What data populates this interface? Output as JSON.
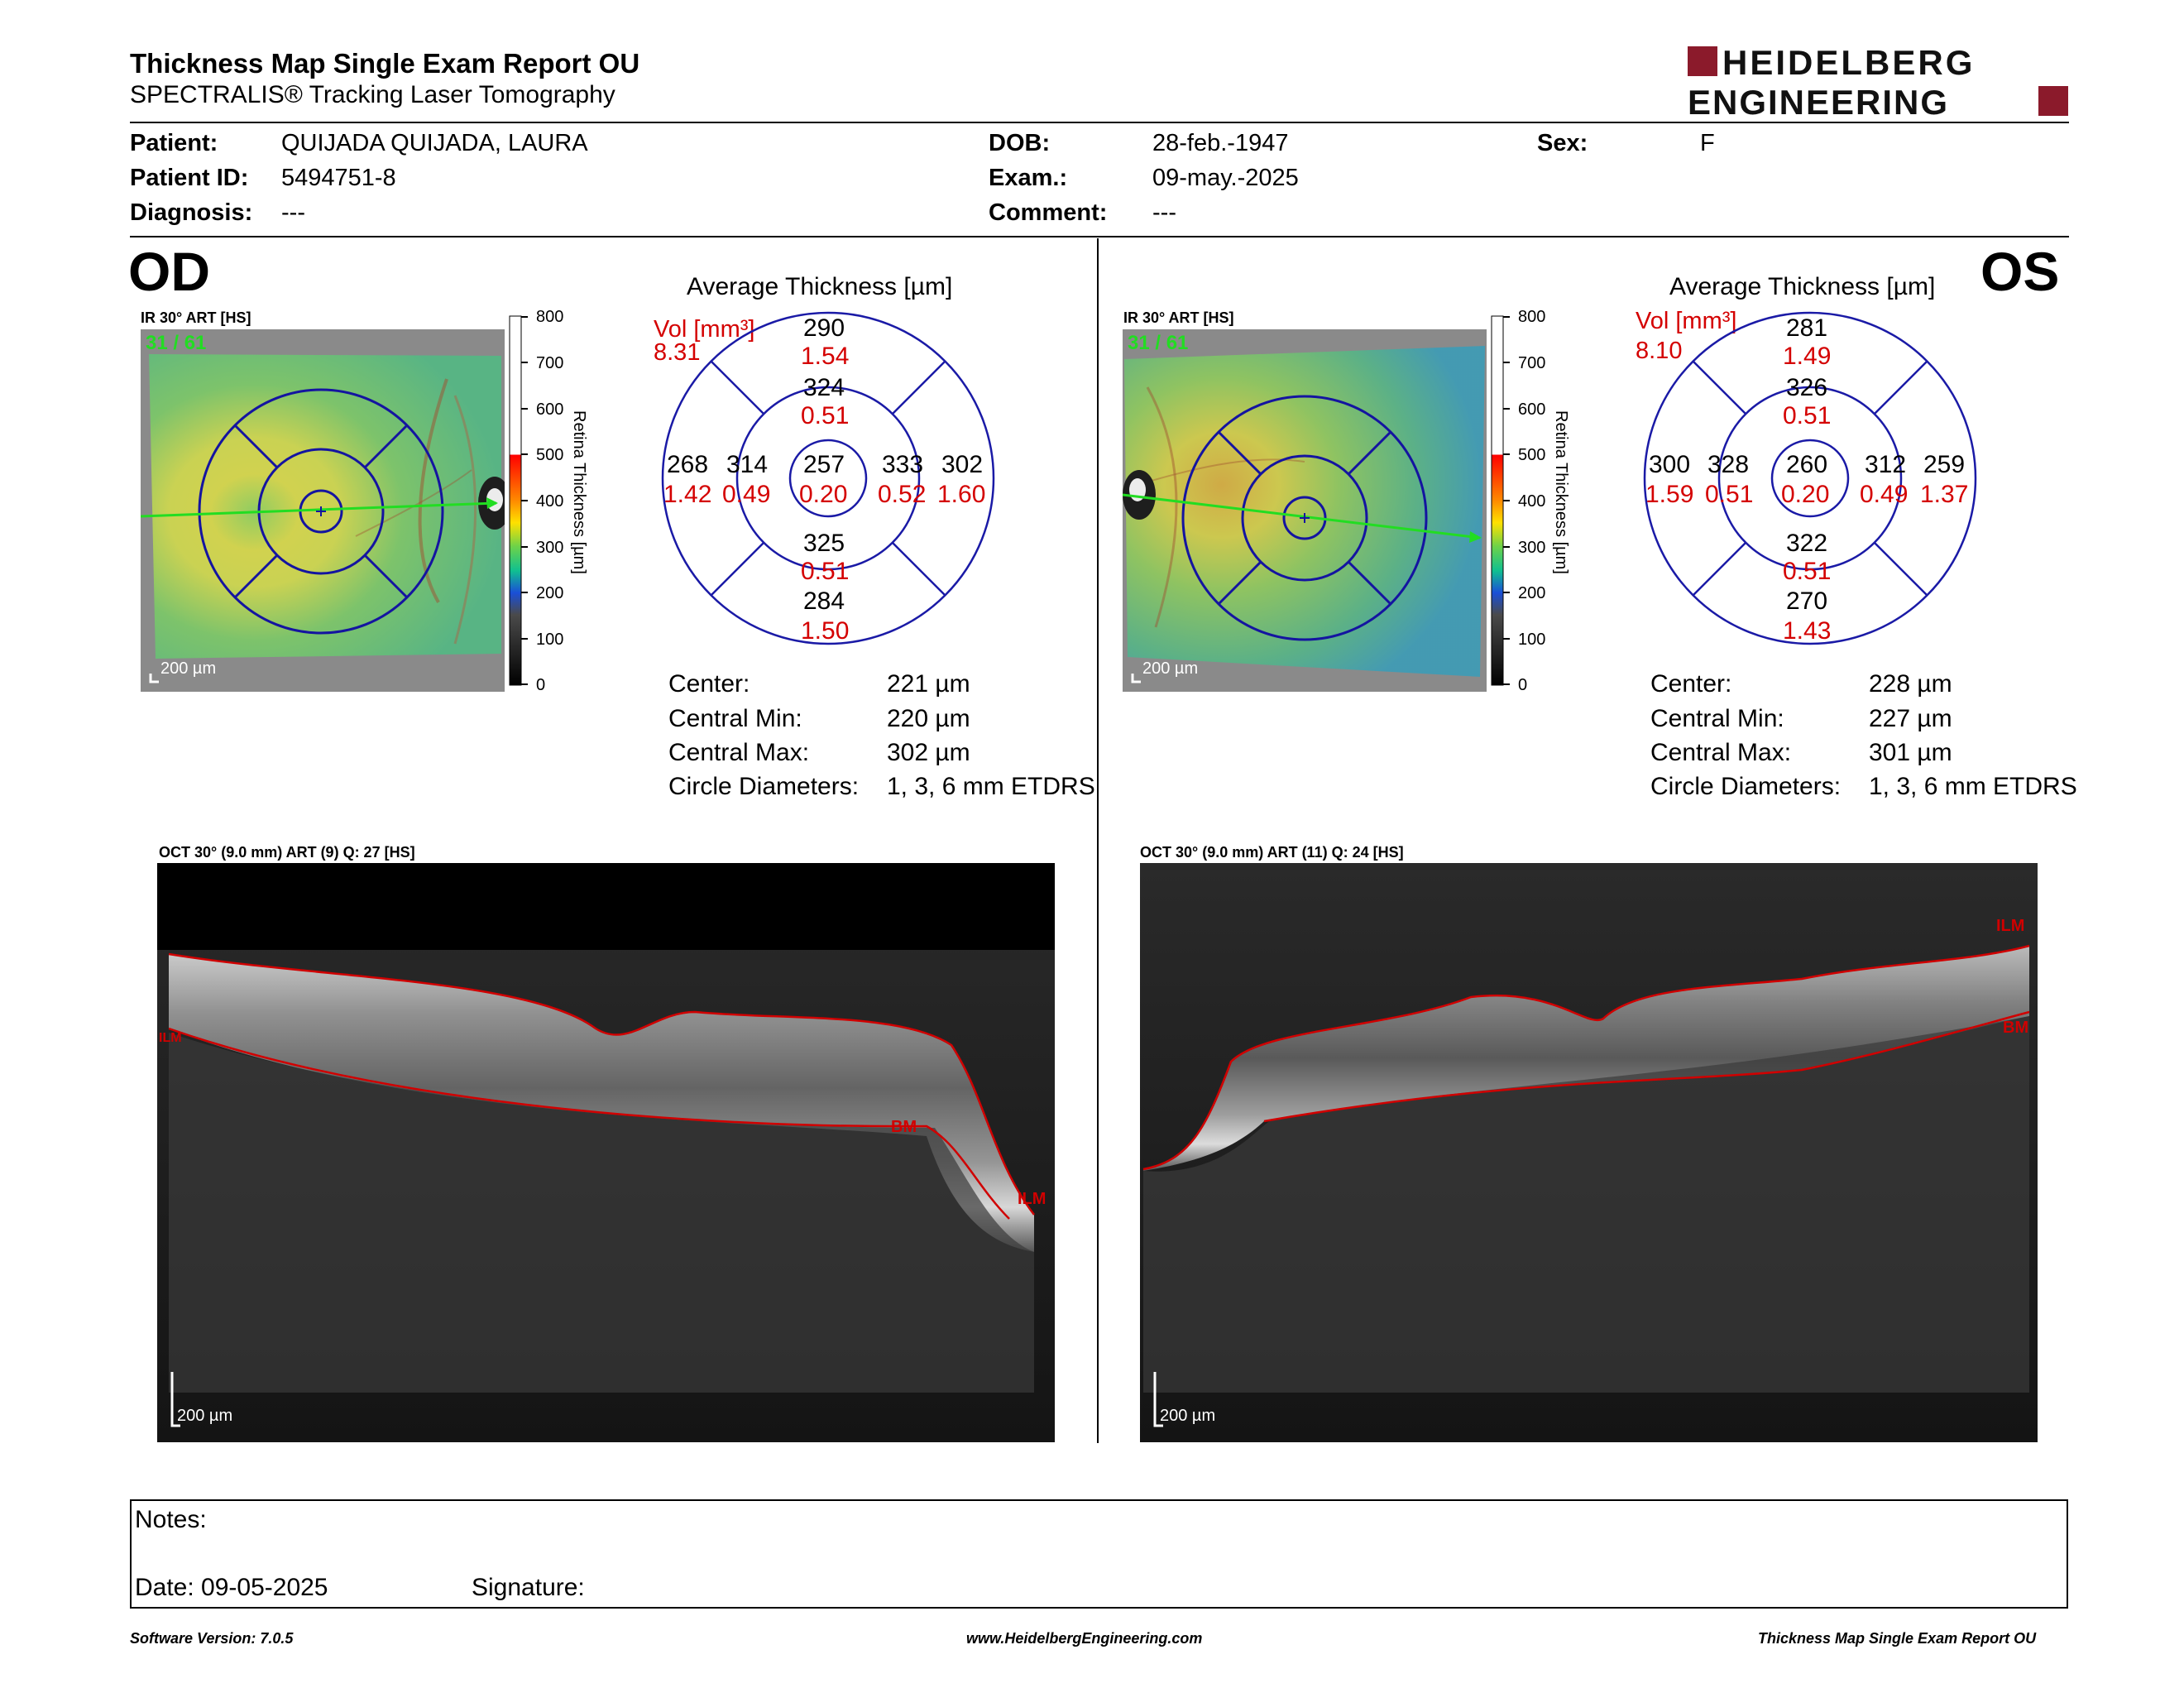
{
  "header": {
    "title": "Thickness Map Single Exam Report OU",
    "subtitle": "SPECTRALIS® Tracking Laser Tomography",
    "logo_line1": "HEIDELBERG",
    "logo_line2": "ENGINEERING",
    "brand_color": "#8b1a2b"
  },
  "patient": {
    "patient_label": "Patient:",
    "patient_value": "QUIJADA QUIJADA, LAURA",
    "id_label": "Patient ID:",
    "id_value": "5494751-8",
    "diagnosis_label": "Diagnosis:",
    "diagnosis_value": "---",
    "dob_label": "DOB:",
    "dob_value": "28-feb.-1947",
    "exam_label": "Exam.:",
    "exam_value": "09-may.-2025",
    "comment_label": "Comment:",
    "comment_value": "---",
    "sex_label": "Sex:",
    "sex_value": "F"
  },
  "scale": {
    "title": "Retina Thickness [µm]",
    "ticks": [
      "800",
      "700",
      "600",
      "500",
      "400",
      "300",
      "200",
      "100",
      "0"
    ]
  },
  "od": {
    "eye": "OD",
    "ir_caption": "IR 30° ART [HS]",
    "frame_count": "31 / 61",
    "scale_bar": "200 µm",
    "avg_title": "Average Thickness [µm]",
    "vol_label": "Vol [mm³]",
    "vol_value": "8.31",
    "sectors": {
      "superior_outer_t": "290",
      "superior_outer_v": "1.54",
      "superior_inner_t": "324",
      "superior_inner_v": "0.51",
      "nasal_outer_t": "268",
      "nasal_outer_v": "1.42",
      "nasal_inner_t": "314",
      "nasal_inner_v": "0.49",
      "center_t": "257",
      "center_v": "0.20",
      "temporal_inner_t": "333",
      "temporal_inner_v": "0.52",
      "temporal_outer_t": "302",
      "temporal_outer_v": "1.60",
      "inferior_inner_t": "325",
      "inferior_inner_v": "0.51",
      "inferior_outer_t": "284",
      "inferior_outer_v": "1.50"
    },
    "stats": [
      {
        "label": "Center:",
        "value": "221 µm"
      },
      {
        "label": "Central Min:",
        "value": "220 µm"
      },
      {
        "label": "Central Max:",
        "value": "302 µm"
      },
      {
        "label": "Circle Diameters:",
        "value": "1, 3, 6 mm ETDRS"
      }
    ],
    "oct_caption": "OCT 30° (9.0 mm) ART (9) Q: 27 [HS]",
    "oct_scale": "200 µm",
    "layer_bm": "BM",
    "layer_ilm": "ILM",
    "layer_left": "ILM"
  },
  "os": {
    "eye": "OS",
    "ir_caption": "IR 30° ART [HS]",
    "frame_count": "31 / 61",
    "scale_bar": "200 µm",
    "avg_title": "Average Thickness [µm]",
    "vol_label": "Vol [mm³]",
    "vol_value": "8.10",
    "sectors": {
      "superior_outer_t": "281",
      "superior_outer_v": "1.49",
      "superior_inner_t": "326",
      "superior_inner_v": "0.51",
      "temporal_outer_t": "300",
      "temporal_outer_v": "1.59",
      "temporal_inner_t": "328",
      "temporal_inner_v": "0.51",
      "center_t": "260",
      "center_v": "0.20",
      "nasal_inner_t": "312",
      "nasal_inner_v": "0.49",
      "nasal_outer_t": "259",
      "nasal_outer_v": "1.37",
      "inferior_inner_t": "322",
      "inferior_inner_v": "0.51",
      "inferior_outer_t": "270",
      "inferior_outer_v": "1.43"
    },
    "stats": [
      {
        "label": "Center:",
        "value": "228 µm"
      },
      {
        "label": "Central Min:",
        "value": "227 µm"
      },
      {
        "label": "Central Max:",
        "value": "301 µm"
      },
      {
        "label": "Circle Diameters:",
        "value": "1, 3, 6 mm ETDRS"
      }
    ],
    "oct_caption": "OCT 30° (9.0 mm) ART (11) Q: 24 [HS]",
    "oct_scale": "200 µm",
    "layer_ilm": "ILM",
    "layer_bm": "BM"
  },
  "notes": {
    "notes_label": "Notes:",
    "date_label": "Date: 09-05-2025",
    "signature_label": "Signature:"
  },
  "footer": {
    "left": "Software Version: 7.0.5",
    "center": "www.HeidelbergEngineering.com",
    "right": "Thickness Map Single Exam Report OU"
  },
  "colors": {
    "ring_color": "#1a1aa6",
    "volume_red": "#d40000",
    "layer_red": "#d00000",
    "scan_green": "#22dd22"
  }
}
